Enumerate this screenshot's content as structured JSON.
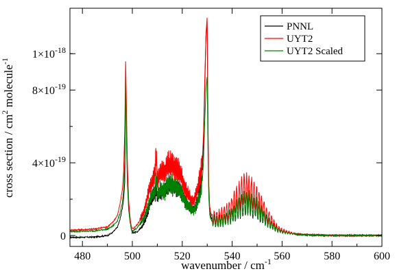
{
  "chart_data": {
    "type": "line",
    "title": "",
    "xlabel": "wavenumber / cm",
    "xlabel_sup": "-1",
    "ylabel_parts": [
      "cross section / cm",
      "2",
      " molecule",
      "-1"
    ],
    "xlim": [
      475,
      600
    ],
    "ylim": [
      -6e-20,
      1.25e-18
    ],
    "x_ticks": [
      480,
      500,
      520,
      540,
      560,
      580,
      600
    ],
    "x_tick_labels": [
      "480",
      "500",
      "520",
      "540",
      "560",
      "580",
      "600"
    ],
    "y_ticks": [
      0,
      4e-19,
      8e-19,
      1e-18
    ],
    "y_tick_labels": [
      {
        "base": "0",
        "exp": ""
      },
      {
        "base": "4×10",
        "exp": "-19"
      },
      {
        "base": "8×10",
        "exp": "-19"
      },
      {
        "base": "1×10",
        "exp": "-18"
      }
    ],
    "grid": false,
    "legend_position": "top-right",
    "series": [
      {
        "name": "PNNL",
        "color": "#000000",
        "baseline_noise": 2e-21,
        "x": [
          475,
          480,
          485,
          490,
          492,
          494,
          495,
          496,
          496.5,
          497,
          497.3,
          497.6,
          498,
          498.5,
          499,
          499.5,
          500,
          502,
          504,
          505,
          506,
          507,
          508,
          509,
          509.5,
          510,
          511,
          512,
          513,
          514,
          515,
          516,
          517,
          518,
          519,
          520,
          521,
          522,
          523,
          524,
          525,
          526,
          527,
          528,
          528.5,
          529,
          529.5,
          530,
          530.3,
          530.6,
          531,
          531.5,
          532,
          533,
          534,
          536,
          538,
          540,
          542,
          544,
          546,
          548,
          550,
          552,
          554,
          556,
          558,
          560,
          565,
          570,
          575,
          580,
          585,
          590,
          595,
          600
        ],
        "y": [
          -1e-20,
          -1e-20,
          -8e-21,
          0,
          1.5e-20,
          4.5e-20,
          8.5e-20,
          1.5e-19,
          2e-19,
          3e-19,
          9e-19,
          6.5e-19,
          3.5e-19,
          1.8e-19,
          1e-19,
          4e-20,
          1.5e-20,
          2e-20,
          5e-20,
          8e-20,
          1.2e-19,
          1.7e-19,
          2.1e-19,
          2.3e-19,
          2.7e-19,
          2e-19,
          2.3e-19,
          2.4e-19,
          2.55e-19,
          2.65e-19,
          2.75e-19,
          2.75e-19,
          2.7e-19,
          2.6e-19,
          2.5e-19,
          2.3e-19,
          2e-19,
          1.7e-19,
          1.5e-19,
          1.4e-19,
          1.5e-19,
          1.8e-19,
          2.4e-19,
          3.5e-19,
          5e-19,
          8e-19,
          1.1e-18,
          1.18e-18,
          6e-19,
          2.5e-19,
          1.3e-19,
          1e-19,
          9e-20,
          8e-20,
          8e-20,
          8.5e-20,
          9.5e-20,
          1.1e-19,
          1.4e-19,
          1.7e-19,
          1.8e-19,
          1.6e-19,
          1.4e-19,
          1.1e-19,
          8e-20,
          5.5e-20,
          3.5e-20,
          2.2e-20,
          8e-21,
          3e-21,
          1.5e-21,
          5e-22,
          2e-22,
          1e-22,
          0,
          0
        ]
      },
      {
        "name": "UYT2",
        "color": "#ff0000",
        "baseline_noise": 2e-21,
        "x": [
          475,
          480,
          485,
          490,
          492,
          494,
          495,
          496,
          496.5,
          497,
          497.3,
          497.6,
          498,
          498.5,
          499,
          499.5,
          500,
          502,
          504,
          505,
          506,
          507,
          508,
          509,
          509.5,
          510,
          511,
          512,
          513,
          514,
          515,
          516,
          517,
          518,
          519,
          520,
          521,
          522,
          523,
          524,
          525,
          526,
          527,
          528,
          528.5,
          529,
          529.5,
          530,
          530.3,
          530.6,
          531,
          531.5,
          532,
          533,
          534,
          536,
          538,
          540,
          542,
          544,
          546,
          548,
          550,
          552,
          554,
          556,
          558,
          560,
          565,
          570,
          575,
          580,
          585,
          590,
          595,
          600
        ],
        "y": [
          3e-20,
          3.2e-20,
          3.6e-20,
          4.8e-20,
          7e-20,
          1.1e-19,
          1.7e-19,
          2.5e-19,
          3.5e-19,
          6e-19,
          9.7e-19,
          7.5e-19,
          4e-19,
          2e-19,
          1.1e-19,
          5.5e-20,
          3.5e-20,
          6e-20,
          1.1e-19,
          1.5e-19,
          2.1e-19,
          2.6e-19,
          3e-19,
          3.3e-19,
          4.7e-19,
          3e-19,
          3.3e-19,
          3.45e-19,
          3.6e-19,
          3.75e-19,
          3.85e-19,
          3.85e-19,
          3.8e-19,
          3.6e-19,
          3.4e-19,
          3.1e-19,
          2.7e-19,
          2.3e-19,
          2.05e-19,
          1.9e-19,
          2e-19,
          2.4e-19,
          3e-19,
          4e-19,
          5.5e-19,
          8.5e-19,
          1.1e-18,
          1.21e-18,
          6.5e-19,
          3e-19,
          1.6e-19,
          1.2e-19,
          1.05e-19,
          1e-19,
          1e-19,
          1.1e-19,
          1.3e-19,
          1.6e-19,
          2e-19,
          2.4e-19,
          2.5e-19,
          2.3e-19,
          2e-19,
          1.6e-19,
          1.1e-19,
          7.5e-20,
          4.5e-20,
          2.8e-20,
          1e-20,
          4e-21,
          2e-21,
          1e-21,
          5e-22,
          2e-22,
          0,
          0
        ]
      },
      {
        "name": "UYT2 Scaled",
        "color": "#008000",
        "baseline_noise": 2e-21,
        "x": [
          475,
          480,
          485,
          490,
          492,
          494,
          495,
          496,
          496.5,
          497,
          497.3,
          497.6,
          498,
          498.5,
          499,
          499.5,
          500,
          502,
          504,
          505,
          506,
          507,
          508,
          509,
          509.5,
          510,
          511,
          512,
          513,
          514,
          515,
          516,
          517,
          518,
          519,
          520,
          521,
          522,
          523,
          524,
          525,
          526,
          527,
          528,
          528.5,
          529,
          529.5,
          530,
          530.3,
          530.6,
          531,
          531.5,
          532,
          533,
          534,
          536,
          538,
          540,
          542,
          544,
          546,
          548,
          550,
          552,
          554,
          556,
          558,
          560,
          565,
          570,
          575,
          580,
          585,
          590,
          595,
          600
        ],
        "y": [
          2.2e-20,
          2.3e-20,
          2.6e-20,
          3.5e-20,
          5e-20,
          8e-20,
          1.2e-19,
          1.8e-19,
          2.5e-19,
          4.3e-19,
          8.8e-19,
          5.4e-19,
          2.9e-19,
          1.45e-19,
          8e-20,
          4e-20,
          2.5e-20,
          4.3e-20,
          8e-20,
          1.1e-19,
          1.5e-19,
          1.9e-19,
          2.2e-19,
          2.4e-19,
          3.4e-19,
          2.2e-19,
          2.4e-19,
          2.5e-19,
          2.6e-19,
          2.7e-19,
          2.8e-19,
          2.8e-19,
          2.75e-19,
          2.6e-19,
          2.45e-19,
          2.25e-19,
          1.95e-19,
          1.65e-19,
          1.5e-19,
          1.4e-19,
          1.45e-19,
          1.75e-19,
          2.2e-19,
          2.9e-19,
          4e-19,
          6.2e-19,
          8e-19,
          8.8e-19,
          4.7e-19,
          2.2e-19,
          1.15e-19,
          8.7e-20,
          7.6e-20,
          7.2e-20,
          7.2e-20,
          8e-20,
          9.4e-20,
          1.15e-19,
          1.45e-19,
          1.75e-19,
          1.8e-19,
          1.65e-19,
          1.45e-19,
          1.15e-19,
          8e-20,
          5.4e-20,
          3.3e-20,
          2e-20,
          7e-21,
          3e-21,
          1.5e-21,
          7e-22,
          3e-22,
          1e-22,
          0,
          0
        ]
      }
    ]
  }
}
